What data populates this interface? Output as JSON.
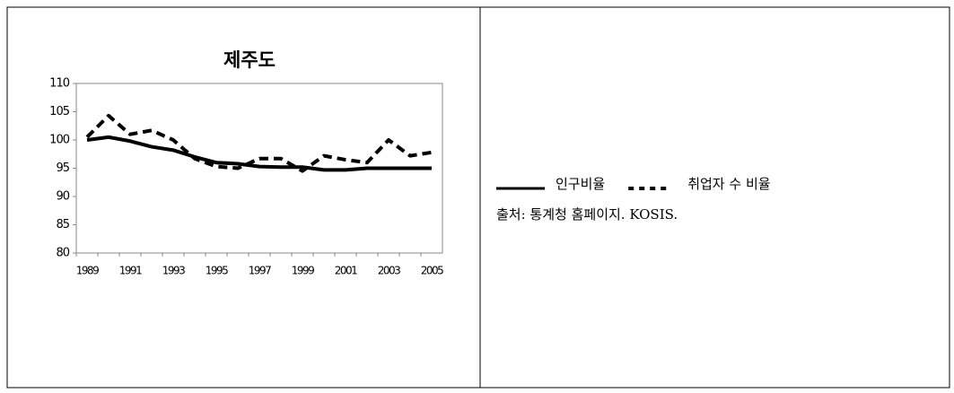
{
  "chart_data": {
    "type": "line",
    "title": "제주도",
    "categories": [
      "1989",
      null,
      "1991",
      null,
      "1993",
      null,
      "1995",
      null,
      "1997",
      null,
      "1999",
      null,
      "2001",
      null,
      "2003",
      null,
      "2005"
    ],
    "series": [
      {
        "name": "인구비율",
        "color": "#000000",
        "style": "solid",
        "values": [
          100,
          100.5,
          99.8,
          98.8,
          98.2,
          97,
          96,
          95.8,
          95.3,
          95.2,
          95.2,
          94.7,
          94.7,
          95,
          95,
          95,
          95
        ]
      },
      {
        "name": "취업자 수 비율",
        "color": "#000000",
        "style": "dashed",
        "values": [
          100.5,
          104.3,
          101,
          101.7,
          100,
          96.7,
          95.3,
          95,
          96.7,
          96.7,
          94.5,
          97.2,
          96.5,
          96,
          100,
          97.2,
          97.8
        ]
      }
    ],
    "ylim": [
      80,
      110
    ],
    "yticks": [
      80,
      85,
      90,
      95,
      100,
      105,
      110
    ],
    "source": "출처: 통계청 홈페이지. KOSIS."
  }
}
